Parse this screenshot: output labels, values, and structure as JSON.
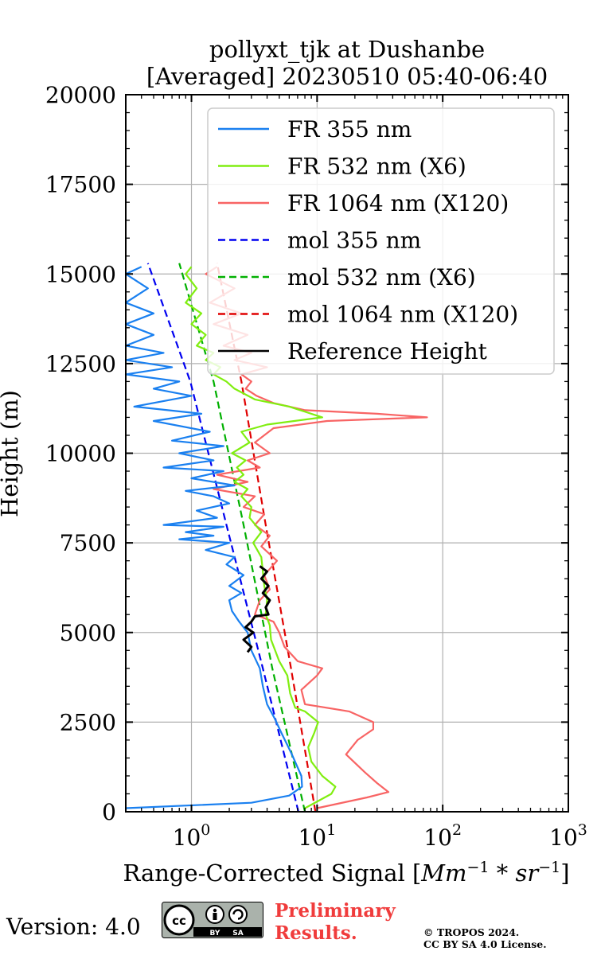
{
  "chart_data": {
    "type": "line",
    "title": "pollyxt_tjk at Dushanbe",
    "subtitle": "[Averaged] 20230510 05:40-06:40",
    "xlabel": "Range-Corrected Signal [$Mm^{-1}*sr^{-1}$]",
    "xlabel_text": "Range-Corrected Signal [",
    "xlabel_unit": "Mm",
    "xlabel_exp1": "−1",
    "xlabel_mid": " * sr",
    "xlabel_exp2": "−1",
    "xlabel_end": "]",
    "ylabel": "Height (m)",
    "xscale": "log",
    "xlim": [
      0.3,
      1000
    ],
    "ylim": [
      0,
      20000
    ],
    "grid": true,
    "legend_position": "top-right",
    "yticks": [
      "0",
      "2500",
      "5000",
      "7500",
      "10000",
      "12500",
      "15000",
      "17500",
      "20000"
    ],
    "xticks": [
      {
        "value": 1,
        "base": "10",
        "exp": "0"
      },
      {
        "value": 10,
        "base": "10",
        "exp": "1"
      },
      {
        "value": 100,
        "base": "10",
        "exp": "2"
      },
      {
        "value": 1000,
        "base": "10",
        "exp": "3"
      }
    ],
    "series": [
      {
        "name": "FR 355 nm",
        "color": "#1a80f0",
        "dash": "solid",
        "points": [
          [
            0.3,
            100
          ],
          [
            3,
            250
          ],
          [
            6,
            450
          ],
          [
            7.6,
            700
          ],
          [
            7.5,
            1000
          ],
          [
            6.3,
            1600
          ],
          [
            5.2,
            2200
          ],
          [
            4.6,
            2600
          ],
          [
            4.0,
            3000
          ],
          [
            3.7,
            3500
          ],
          [
            3.5,
            4000
          ],
          [
            3.0,
            4500
          ],
          [
            2.8,
            5000
          ],
          [
            2.4,
            5300
          ],
          [
            2.1,
            5600
          ],
          [
            2.0,
            5900
          ],
          [
            2.5,
            6100
          ],
          [
            2.0,
            6300
          ],
          [
            2.6,
            6600
          ],
          [
            1.9,
            6900
          ],
          [
            2.2,
            7100
          ],
          [
            1.3,
            7300
          ],
          [
            2.0,
            7500
          ],
          [
            0.8,
            7600
          ],
          [
            1.5,
            7700
          ],
          [
            0.9,
            7800
          ],
          [
            1.8,
            7950
          ],
          [
            0.6,
            8000
          ],
          [
            1.6,
            8200
          ],
          [
            1.1,
            8400
          ],
          [
            2.0,
            8600
          ],
          [
            1.5,
            8800
          ],
          [
            0.9,
            8950
          ],
          [
            2.2,
            9100
          ],
          [
            1.0,
            9300
          ],
          [
            1.8,
            9500
          ],
          [
            0.6,
            9600
          ],
          [
            1.5,
            9800
          ],
          [
            0.8,
            10000
          ],
          [
            1.8,
            10200
          ],
          [
            0.7,
            10350
          ],
          [
            1.4,
            10600
          ],
          [
            0.5,
            10900
          ],
          [
            1.2,
            11100
          ],
          [
            0.35,
            11300
          ],
          [
            1.0,
            11600
          ],
          [
            0.5,
            11800
          ],
          [
            0.8,
            12000
          ],
          [
            0.3,
            12200
          ],
          [
            0.7,
            12400
          ],
          [
            0.3,
            12600
          ],
          [
            0.6,
            12800
          ],
          [
            0.3,
            13000
          ],
          [
            0.5,
            13300
          ],
          [
            0.3,
            13600
          ],
          [
            0.5,
            13900
          ],
          [
            0.3,
            14200
          ],
          [
            0.45,
            14600
          ],
          [
            0.3,
            15000
          ],
          [
            0.4,
            15200
          ]
        ]
      },
      {
        "name": "FR 532 nm (X6)",
        "color": "#80ee10",
        "dash": "solid",
        "points": [
          [
            8,
            100
          ],
          [
            13,
            500
          ],
          [
            14,
            700
          ],
          [
            11,
            1000
          ],
          [
            9,
            1400
          ],
          [
            8.5,
            1800
          ],
          [
            9.5,
            2200
          ],
          [
            10.2,
            2500
          ],
          [
            8,
            2800
          ],
          [
            6.7,
            2900
          ],
          [
            6.1,
            3300
          ],
          [
            5.8,
            3800
          ],
          [
            5.0,
            4200
          ],
          [
            4.3,
            4800
          ],
          [
            4.2,
            5200
          ],
          [
            3.9,
            5500
          ],
          [
            4.0,
            5900
          ],
          [
            3.8,
            6300
          ],
          [
            3.7,
            6700
          ],
          [
            3.6,
            7100
          ],
          [
            3.1,
            7500
          ],
          [
            3.6,
            7800
          ],
          [
            2.9,
            8200
          ],
          [
            3.0,
            8500
          ],
          [
            2.5,
            8800
          ],
          [
            2.8,
            9000
          ],
          [
            2.2,
            9200
          ],
          [
            2.6,
            9400
          ],
          [
            2.3,
            9600
          ],
          [
            2.7,
            9800
          ],
          [
            2.1,
            10000
          ],
          [
            2.9,
            10300
          ],
          [
            2.5,
            10600
          ],
          [
            4.0,
            10800
          ],
          [
            11,
            11000
          ],
          [
            6.0,
            11300
          ],
          [
            3.2,
            11500
          ],
          [
            2.2,
            11800
          ],
          [
            1.9,
            12000
          ],
          [
            1.5,
            12200
          ],
          [
            1.7,
            12400
          ],
          [
            1.3,
            12600
          ],
          [
            1.5,
            12800
          ],
          [
            1.1,
            13000
          ],
          [
            1.3,
            13300
          ],
          [
            1.0,
            13600
          ],
          [
            1.2,
            13900
          ],
          [
            0.9,
            14200
          ],
          [
            1.1,
            14600
          ],
          [
            0.9,
            15000
          ],
          [
            1.0,
            15200
          ]
        ]
      },
      {
        "name": "FR 1064 nm (X120)",
        "color": "#f86464",
        "dash": "solid",
        "points": [
          [
            10,
            100
          ],
          [
            25,
            400
          ],
          [
            37,
            550
          ],
          [
            30,
            800
          ],
          [
            24,
            1100
          ],
          [
            17,
            1600
          ],
          [
            21,
            2000
          ],
          [
            28,
            2300
          ],
          [
            28,
            2500
          ],
          [
            18,
            2800
          ],
          [
            8,
            3000
          ],
          [
            7.5,
            3400
          ],
          [
            10,
            3800
          ],
          [
            11,
            4000
          ],
          [
            7,
            4200
          ],
          [
            5.5,
            4600
          ],
          [
            5.0,
            5000
          ],
          [
            4.5,
            5300
          ],
          [
            3.2,
            5500
          ],
          [
            3.5,
            5900
          ],
          [
            4.2,
            6200
          ],
          [
            3.8,
            6600
          ],
          [
            4.8,
            7000
          ],
          [
            3.6,
            7400
          ],
          [
            4.2,
            7700
          ],
          [
            3.2,
            8000
          ],
          [
            3.8,
            8300
          ],
          [
            2.6,
            8500
          ],
          [
            3.2,
            8800
          ],
          [
            1.5,
            9000
          ],
          [
            2.8,
            9200
          ],
          [
            1.6,
            9400
          ],
          [
            3.5,
            9600
          ],
          [
            2.8,
            9800
          ],
          [
            4.2,
            10000
          ],
          [
            3.2,
            10300
          ],
          [
            4.5,
            10700
          ],
          [
            12,
            10900
          ],
          [
            75,
            11000
          ],
          [
            30,
            11100
          ],
          [
            8,
            11200
          ],
          [
            4.5,
            11400
          ],
          [
            3.3,
            11600
          ],
          [
            2.7,
            11800
          ],
          [
            3.0,
            12000
          ],
          [
            2.5,
            12200
          ],
          [
            4.0,
            12400
          ],
          [
            2.2,
            12600
          ],
          [
            3.0,
            12800
          ],
          [
            1.8,
            13000
          ],
          [
            2.8,
            13300
          ],
          [
            1.5,
            13600
          ],
          [
            2.5,
            13900
          ],
          [
            1.4,
            14200
          ],
          [
            2.2,
            14600
          ],
          [
            1.3,
            15000
          ],
          [
            1.6,
            15200
          ]
        ]
      },
      {
        "name": "mol 355 nm",
        "color": "#0000f0",
        "dash": "dashed",
        "points": [
          [
            7.1,
            0
          ],
          [
            3.7,
            4000
          ],
          [
            1.9,
            8000
          ],
          [
            0.98,
            12000
          ],
          [
            0.45,
            15300
          ]
        ]
      },
      {
        "name": "mol 532 nm (X6)",
        "color": "#00b000",
        "dash": "dashed",
        "points": [
          [
            8.0,
            0
          ],
          [
            4.4,
            4000
          ],
          [
            2.6,
            8000
          ],
          [
            1.5,
            12000
          ],
          [
            0.8,
            15300
          ]
        ]
      },
      {
        "name": "mol 1064 nm (X120)",
        "color": "#e00000",
        "dash": "dashed",
        "points": [
          [
            9.7,
            0
          ],
          [
            6.2,
            4000
          ],
          [
            3.9,
            8000
          ],
          [
            2.5,
            12000
          ],
          [
            1.6,
            15300
          ]
        ]
      },
      {
        "name": "Reference Height",
        "color": "#000000",
        "dash": "solid",
        "points": [
          [
            2.8,
            4450
          ],
          [
            3.0,
            4600
          ],
          [
            2.6,
            4800
          ],
          [
            3.1,
            5000
          ],
          [
            2.7,
            5150
          ],
          [
            3.0,
            5300
          ],
          [
            3.2,
            5450
          ],
          [
            4.1,
            5500
          ],
          [
            3.9,
            5700
          ],
          [
            4.2,
            5900
          ],
          [
            3.7,
            6100
          ],
          [
            4.1,
            6300
          ],
          [
            3.6,
            6500
          ],
          [
            4.0,
            6700
          ],
          [
            3.5,
            6850
          ]
        ]
      }
    ]
  },
  "footer": {
    "version": "Version: 4.0",
    "license_badge": "cc-by-sa",
    "license_abbrev": [
      "cc",
      "BY",
      "SA"
    ],
    "preliminary": [
      "Preliminary",
      "Results."
    ],
    "copyright": [
      "© TROPOS 2024.",
      "CC BY SA 4.0 License."
    ]
  }
}
